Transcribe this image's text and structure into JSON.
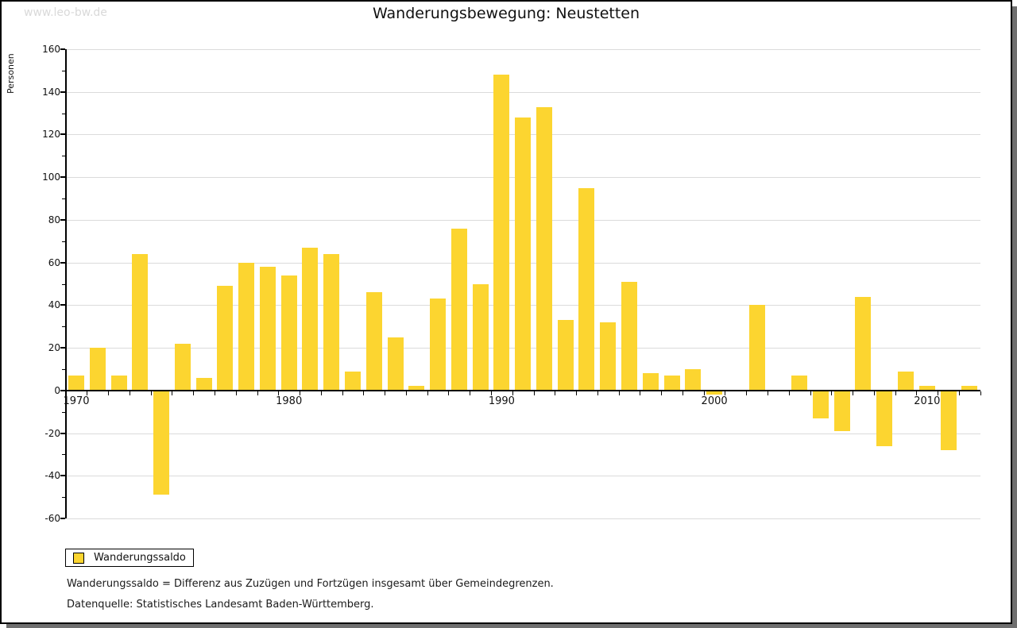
{
  "watermark": "www.leo-bw.de",
  "title": "Wanderungsbewegung: Neustetten",
  "legend": {
    "label": "Wanderungssaldo"
  },
  "footnotes": [
    "Wanderungssaldo = Differenz aus Zuzügen und Fortzügen insgesamt über Gemeindegrenzen.",
    "Datenquelle: Statistisches Landesamt Baden-Württemberg."
  ],
  "colors": {
    "bar": "#FCD530",
    "grid": "#DBDBDB",
    "axis": "#000000",
    "watermark": "#D9D9D9",
    "shadow": "#6F6F6F"
  },
  "chart_data": {
    "type": "bar",
    "title": "Wanderungsbewegung: Neustetten",
    "ylabel": "Personen",
    "xlabel": "",
    "ylim": [
      -60,
      160
    ],
    "ytick_step": 20,
    "ytick_minor_step": 10,
    "grid": true,
    "legend_position": "bottom-left",
    "xtick_labels": [
      1970,
      1980,
      1990,
      2000,
      2010
    ],
    "series": [
      {
        "name": "Wanderungssaldo",
        "x": [
          1970,
          1971,
          1972,
          1973,
          1974,
          1975,
          1976,
          1977,
          1978,
          1979,
          1980,
          1981,
          1982,
          1983,
          1984,
          1985,
          1986,
          1987,
          1988,
          1989,
          1990,
          1991,
          1992,
          1993,
          1994,
          1995,
          1996,
          1997,
          1998,
          1999,
          2000,
          2001,
          2002,
          2003,
          2004,
          2005,
          2006,
          2007,
          2008,
          2009,
          2010,
          2011,
          2012
        ],
        "values": [
          7,
          20,
          7,
          64,
          -49,
          22,
          6,
          49,
          60,
          58,
          54,
          67,
          64,
          9,
          46,
          25,
          2,
          43,
          76,
          50,
          148,
          128,
          133,
          33,
          95,
          32,
          51,
          8,
          7,
          10,
          -2,
          0,
          40,
          0,
          7,
          -13,
          -19,
          44,
          -26,
          9,
          2,
          -28,
          2
        ]
      }
    ]
  }
}
